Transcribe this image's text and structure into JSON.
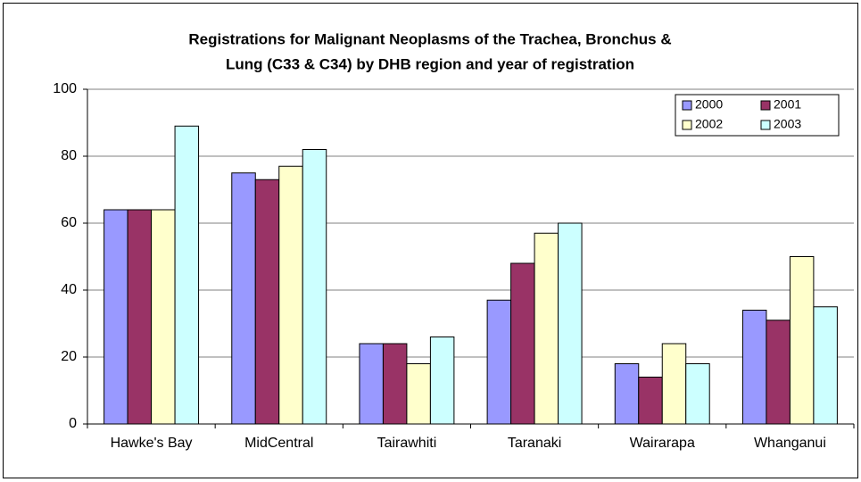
{
  "chart_data": {
    "type": "bar",
    "title": [
      "Registrations for Malignant Neoplasms of the Trachea, Bronchus &",
      "Lung (C33 & C34) by DHB region and year of registration"
    ],
    "categories": [
      "Hawke's Bay",
      "MidCentral",
      "Tairawhiti",
      "Taranaki",
      "Wairarapa",
      "Whanganui"
    ],
    "series": [
      {
        "name": "2000",
        "color": "#9999ff",
        "values": [
          64,
          75,
          24,
          37,
          18,
          34
        ]
      },
      {
        "name": "2001",
        "color": "#993366",
        "values": [
          64,
          73,
          24,
          48,
          14,
          31
        ]
      },
      {
        "name": "2002",
        "color": "#ffffcc",
        "values": [
          64,
          77,
          18,
          57,
          24,
          50
        ]
      },
      {
        "name": "2003",
        "color": "#ccffff",
        "values": [
          89,
          82,
          26,
          60,
          18,
          35
        ]
      }
    ],
    "ylim": [
      0,
      100
    ],
    "yticks": [
      0,
      20,
      40,
      60,
      80,
      100
    ],
    "grid": true,
    "legend": "top-right"
  }
}
